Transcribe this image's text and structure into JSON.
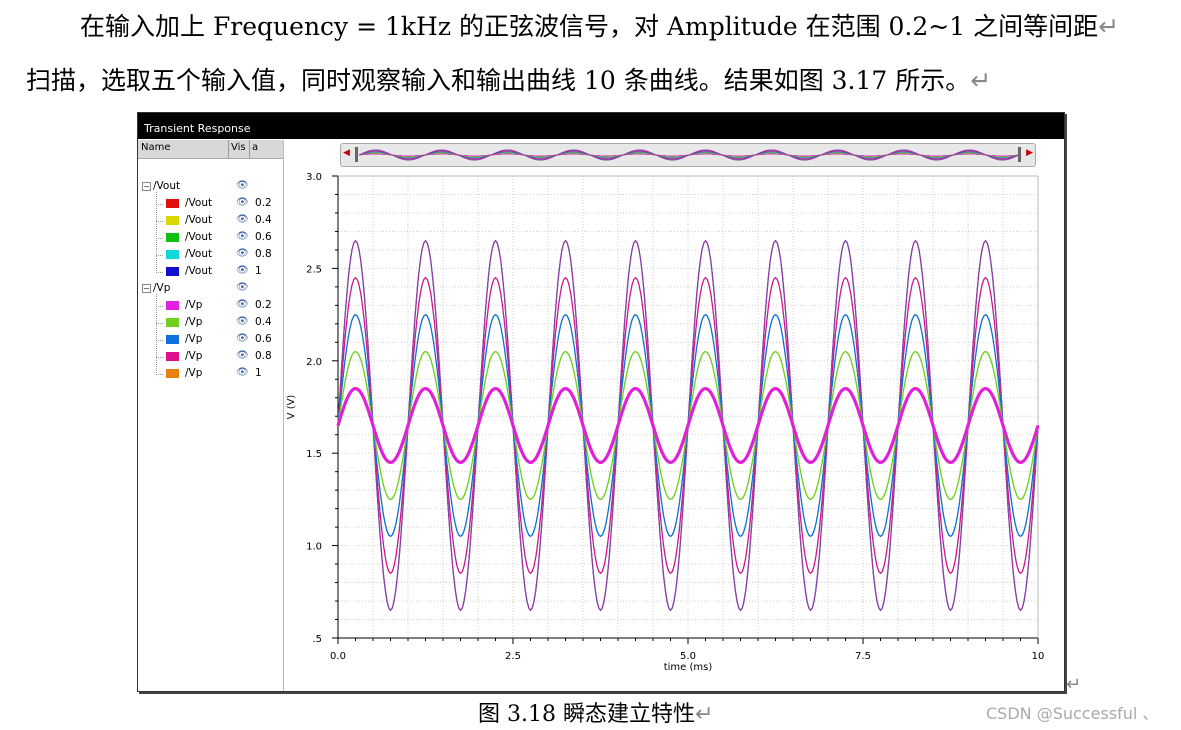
{
  "document": {
    "line1": "在输入加上 Frequency = 1kHz 的正弦波信号，对 Amplitude 在范围 0.2~1 之间等间距",
    "line2": "扫描，选取五个输入值，同时观察输入和输出曲线 10 条曲线。结果如图 3.17 所示。",
    "return_mark": "↵",
    "caption": "图 3.18  瞬态建立特性",
    "watermark": "CSDN @Successful 、"
  },
  "window": {
    "title": "Transient Response",
    "columns": {
      "name": "Name",
      "vis": "Vis",
      "a": "a"
    },
    "tree": [
      {
        "label": "/Vout",
        "expander": "⊟",
        "children": [
          {
            "label": "/Vout",
            "color": "#e01010",
            "value": "0.2"
          },
          {
            "label": "/Vout",
            "color": "#d8d800",
            "value": "0.4"
          },
          {
            "label": "/Vout",
            "color": "#10c010",
            "value": "0.6"
          },
          {
            "label": "/Vout",
            "color": "#10d8d8",
            "value": "0.8"
          },
          {
            "label": "/Vout",
            "color": "#1010d0",
            "value": "1"
          }
        ]
      },
      {
        "label": "/Vp",
        "expander": "⊟",
        "children": [
          {
            "label": "/Vp",
            "color": "#e020e0",
            "value": "0.2"
          },
          {
            "label": "/Vp",
            "color": "#70d020",
            "value": "0.4"
          },
          {
            "label": "/Vp",
            "color": "#1070e0",
            "value": "0.6"
          },
          {
            "label": "/Vp",
            "color": "#e0108a",
            "value": "0.8"
          },
          {
            "label": "/Vp",
            "color": "#e88010",
            "value": "1"
          }
        ]
      }
    ]
  },
  "chart_data": {
    "type": "line",
    "xlabel": "time (ms)",
    "ylabel": "V (V)",
    "xlim": [
      0,
      10
    ],
    "ylim": [
      0.5,
      3.0
    ],
    "xticks": [
      0,
      2.5,
      5.0,
      7.5,
      10
    ],
    "xtick_labels": [
      "0.0",
      "2.5",
      "5.0",
      "7.5",
      "10"
    ],
    "yticks": [
      0.5,
      1.0,
      1.5,
      2.0,
      2.5,
      3.0
    ],
    "ytick_labels": [
      ".5",
      "1.0",
      "1.5",
      "2.0",
      "2.5",
      "3.0"
    ],
    "grid": true,
    "frequency_khz": 1,
    "dc_offset_v": 1.65,
    "series": [
      {
        "name": "/Vout 0.2",
        "color": "#e01010",
        "amplitude": 0.2,
        "kind": "sine"
      },
      {
        "name": "/Vout 0.4",
        "color": "#8fcc20",
        "amplitude": 0.4,
        "kind": "sine"
      },
      {
        "name": "/Vout 0.6",
        "color": "#20b060",
        "amplitude": 0.6,
        "kind": "sine"
      },
      {
        "name": "/Vout 0.8",
        "color": "#20b8c8",
        "amplitude": 0.8,
        "kind": "sine"
      },
      {
        "name": "/Vout 1",
        "color": "#3030c0",
        "amplitude": 1.0,
        "kind": "sine"
      },
      {
        "name": "/Vp 0.2",
        "color": "#e020e0",
        "amplitude": 0.2,
        "kind": "sine"
      },
      {
        "name": "/Vp 0.4",
        "color": "#70d020",
        "amplitude": 0.4,
        "kind": "sine"
      },
      {
        "name": "/Vp 0.6",
        "color": "#1070e0",
        "amplitude": 0.6,
        "kind": "sine"
      },
      {
        "name": "/Vp 0.8",
        "color": "#e0108a",
        "amplitude": 0.8,
        "kind": "sine"
      },
      {
        "name": "/Vp 1",
        "color": "#9040a0",
        "amplitude": 1.0,
        "kind": "sine"
      }
    ]
  }
}
